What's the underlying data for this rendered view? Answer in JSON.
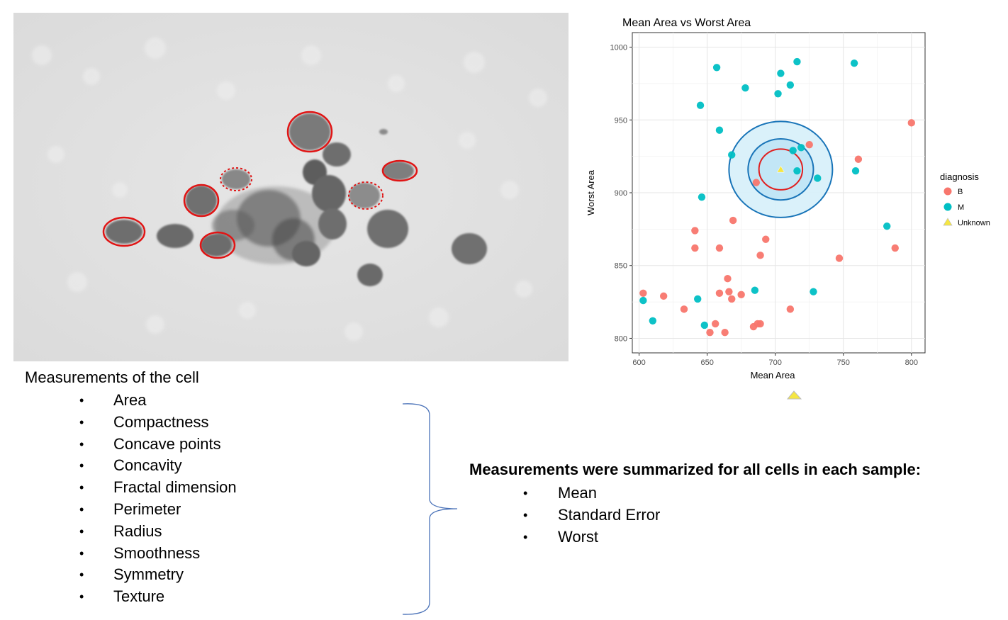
{
  "measurements": {
    "title": "Measurements of the cell",
    "items": [
      "Area",
      "Compactness",
      "Concave points",
      "Concavity",
      "Fractal dimension",
      "Perimeter",
      "Radius",
      "Smoothness",
      "Symmetry",
      "Texture"
    ]
  },
  "summary": {
    "title": "Measurements were summarized for all cells in each sample:",
    "items": [
      "Mean",
      "Standard Error",
      "Worst"
    ]
  },
  "chart_data": {
    "type": "scatter",
    "title": "Mean Area vs Worst Area",
    "xlabel": "Mean Area",
    "ylabel": "Worst Area",
    "xlim": [
      595,
      810
    ],
    "ylim": [
      790,
      1010
    ],
    "xticks": [
      600,
      650,
      700,
      750,
      800
    ],
    "yticks": [
      800,
      850,
      900,
      950,
      1000
    ],
    "grid": true,
    "legend": {
      "title": "diagnosis",
      "position": "right"
    },
    "series": [
      {
        "name": "B",
        "color": "#F8766D",
        "marker": "circle",
        "points": [
          [
            603,
            831
          ],
          [
            618,
            829
          ],
          [
            633,
            820
          ],
          [
            641,
            874
          ],
          [
            641,
            862
          ],
          [
            652,
            804
          ],
          [
            656,
            810
          ],
          [
            659,
            831
          ],
          [
            659,
            862
          ],
          [
            663,
            804
          ],
          [
            665,
            841
          ],
          [
            666,
            832
          ],
          [
            668,
            827
          ],
          [
            669,
            881
          ],
          [
            675,
            830
          ],
          [
            684,
            808
          ],
          [
            687,
            810
          ],
          [
            689,
            810
          ],
          [
            689,
            857
          ],
          [
            693,
            868
          ],
          [
            711,
            820
          ],
          [
            725,
            933
          ],
          [
            747,
            855
          ],
          [
            761,
            923
          ],
          [
            788,
            862
          ],
          [
            800,
            948
          ],
          [
            686,
            907
          ]
        ]
      },
      {
        "name": "M",
        "color": "#00BFC4",
        "marker": "circle",
        "points": [
          [
            603,
            826
          ],
          [
            610,
            812
          ],
          [
            643,
            827
          ],
          [
            645,
            960
          ],
          [
            646,
            897
          ],
          [
            648,
            809
          ],
          [
            657,
            986
          ],
          [
            659,
            943
          ],
          [
            668,
            926
          ],
          [
            678,
            972
          ],
          [
            685,
            833
          ],
          [
            702,
            968
          ],
          [
            704,
            982
          ],
          [
            711,
            974
          ],
          [
            713,
            929
          ],
          [
            716,
            915
          ],
          [
            716,
            990
          ],
          [
            719,
            931
          ],
          [
            728,
            832
          ],
          [
            731,
            910
          ],
          [
            758,
            989
          ],
          [
            759,
            915
          ],
          [
            782,
            877
          ]
        ]
      },
      {
        "name": "Unknown",
        "color": "#F5E642",
        "marker": "triangle",
        "points": [
          [
            704,
            916
          ]
        ]
      }
    ],
    "annotations": [
      {
        "type": "ellipse",
        "center": [
          704,
          916
        ],
        "rx": 38,
        "ry": 33,
        "fill": "#d6effa",
        "stroke": "#1874b8"
      },
      {
        "type": "ellipse",
        "center": [
          704,
          916
        ],
        "rx": 24,
        "ry": 21,
        "fill": "#bfe4f5",
        "stroke": "#1874b8"
      },
      {
        "type": "ellipse",
        "center": [
          704,
          916
        ],
        "rx": 16,
        "ry": 14,
        "fill": "none",
        "stroke": "#e02020"
      }
    ]
  },
  "colors": {
    "brace": "#4a72b8",
    "cell_outline": "#e01515"
  }
}
